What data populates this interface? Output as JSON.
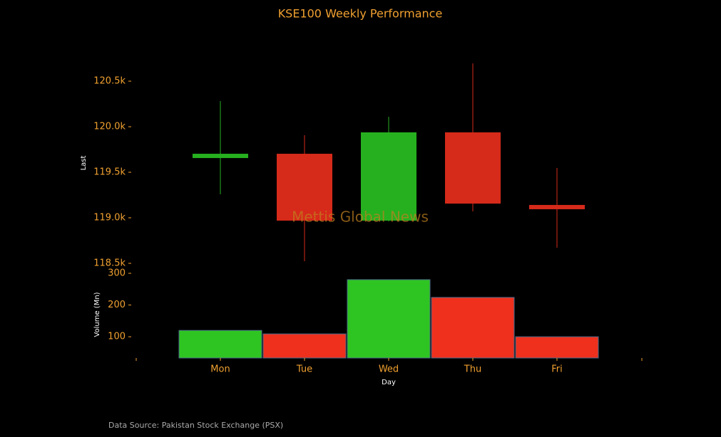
{
  "chart_data": [
    {
      "type": "candlestick",
      "title": "KSE100 Weekly Performance",
      "ylabel": "Last",
      "annotation": "Mettis Global News",
      "source": "Data Source: Pakistan Stock Exchange (PSX)",
      "open": [
        119656,
        119703,
        118969,
        119938,
        119141
      ],
      "high": [
        120281,
        119906,
        120109,
        120695,
        119547
      ],
      "low": [
        119258,
        118523,
        118960,
        119070,
        118672
      ],
      "close": [
        119703,
        118969,
        119938,
        119156,
        119094
      ],
      "up_color": "#26b01f",
      "down_color": "#d62a1a",
      "ylim": [
        118500,
        120766
      ],
      "yticks": [
        {
          "value": 118500,
          "label": "118.5k"
        },
        {
          "value": 119000,
          "label": "119.0k"
        },
        {
          "value": 119500,
          "label": "119.5k"
        },
        {
          "value": 120000,
          "label": "120.0k"
        },
        {
          "value": 120500,
          "label": "120.5k"
        }
      ]
    },
    {
      "type": "bar",
      "xlabel": "Day",
      "ylabel": "Volume (Mn)",
      "categories": [
        "Mon",
        "Tue",
        "Wed",
        "Thu",
        "Fri"
      ],
      "values": [
        120,
        109,
        280,
        224,
        100
      ],
      "colors": [
        "#2ec522",
        "#ee301d",
        "#2ec522",
        "#ee301d",
        "#ee301d"
      ],
      "ylim": [
        33,
        300
      ],
      "yticks": [
        100,
        200,
        300
      ]
    }
  ]
}
